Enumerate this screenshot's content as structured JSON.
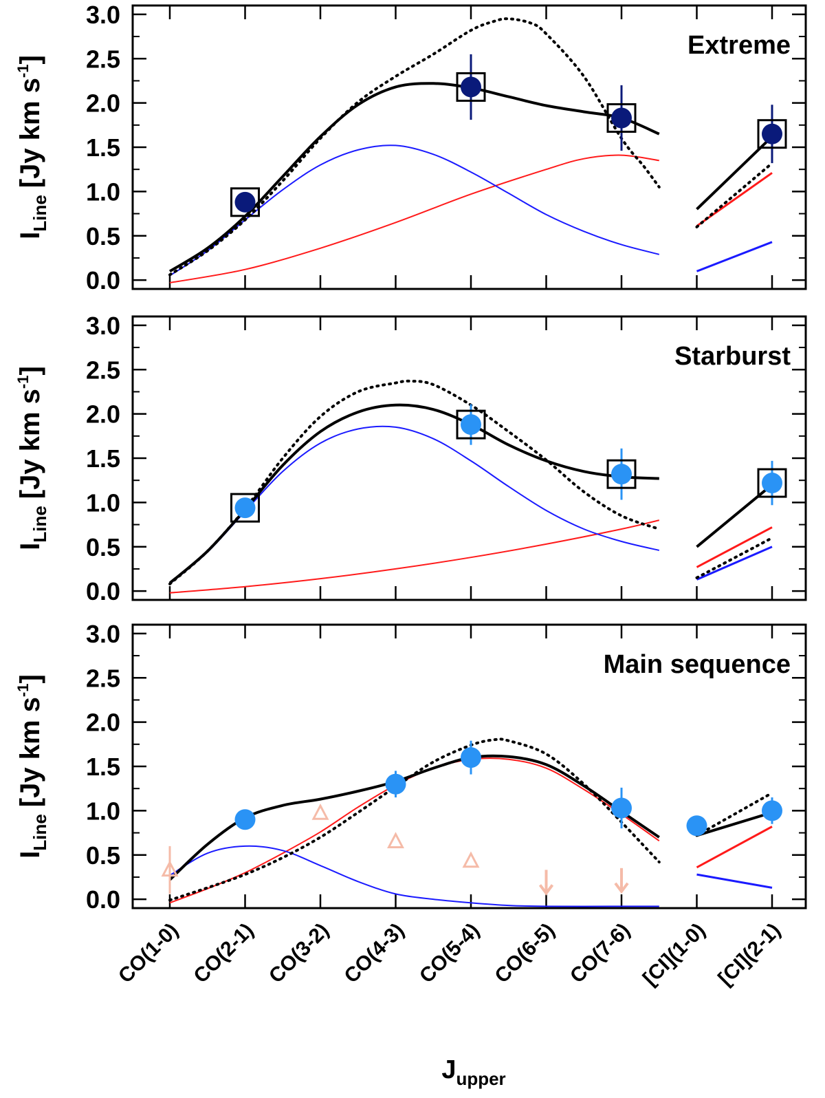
{
  "chart_data": {
    "type": "line",
    "x_axis": {
      "label_main": "J",
      "label_sub": "upper",
      "categories": [
        "CO(1-0)",
        "CO(2-1)",
        "CO(3-2)",
        "CO(4-3)",
        "CO(5-4)",
        "CO(6-5)",
        "CO(7-6)",
        "[CI](1-0)",
        "[CI](2-1)"
      ]
    },
    "y_axis": {
      "label_main": "I",
      "label_sub": "Line",
      "label_rest": "[Jy km s",
      "label_sup": "-1",
      "label_close": "]",
      "ylim": [
        -0.1,
        3.1
      ],
      "ticks": [
        "0.0",
        "0.5",
        "1.0",
        "1.5",
        "2.0",
        "2.5",
        "3.0"
      ]
    },
    "colors": {
      "total": "#000000",
      "cold_component": "#1a1aff",
      "warm_component": "#ff1a1a",
      "extreme_points": "#0a1a7a",
      "points": "#2a93f5",
      "faint_points": "#f5bba8"
    },
    "panels": [
      {
        "title": "Extreme",
        "point_color_key": "extreme_points",
        "curves": {
          "total_co": [
            [
              1,
              0.1
            ],
            [
              1.5,
              0.36
            ],
            [
              2,
              0.72
            ],
            [
              2.5,
              1.17
            ],
            [
              3,
              1.62
            ],
            [
              3.5,
              1.98
            ],
            [
              4,
              2.18
            ],
            [
              4.5,
              2.22
            ],
            [
              5,
              2.17
            ],
            [
              5.5,
              2.07
            ],
            [
              6,
              1.97
            ],
            [
              6.5,
              1.9
            ],
            [
              7,
              1.83
            ],
            [
              7.5,
              1.65
            ]
          ],
          "total_ci": [
            [
              8,
              0.8
            ],
            [
              9,
              1.62
            ]
          ],
          "dotted_co": [
            [
              1,
              0.06
            ],
            [
              1.5,
              0.33
            ],
            [
              2,
              0.68
            ],
            [
              2.5,
              1.12
            ],
            [
              3,
              1.6
            ],
            [
              3.5,
              2.01
            ],
            [
              4,
              2.3
            ],
            [
              4.5,
              2.55
            ],
            [
              5,
              2.82
            ],
            [
              5.3,
              2.92
            ],
            [
              5.5,
              2.95
            ],
            [
              5.8,
              2.9
            ],
            [
              6,
              2.78
            ],
            [
              6.5,
              2.3
            ],
            [
              7,
              1.6
            ],
            [
              7.3,
              1.28
            ],
            [
              7.5,
              1.05
            ]
          ],
          "dotted_ci": [
            [
              8,
              0.6
            ],
            [
              9,
              1.32
            ]
          ],
          "blue_co": [
            [
              1,
              0.05
            ],
            [
              1.5,
              0.33
            ],
            [
              2,
              0.68
            ],
            [
              2.5,
              1.02
            ],
            [
              3,
              1.3
            ],
            [
              3.5,
              1.47
            ],
            [
              4,
              1.52
            ],
            [
              4.5,
              1.42
            ],
            [
              5,
              1.22
            ],
            [
              5.5,
              0.98
            ],
            [
              6,
              0.74
            ],
            [
              6.5,
              0.55
            ],
            [
              7,
              0.4
            ],
            [
              7.5,
              0.29
            ]
          ],
          "blue_ci": [
            [
              8,
              0.1
            ],
            [
              9,
              0.43
            ]
          ],
          "red_co": [
            [
              1,
              -0.03
            ],
            [
              2,
              0.12
            ],
            [
              3,
              0.36
            ],
            [
              4,
              0.65
            ],
            [
              5,
              0.97
            ],
            [
              6,
              1.25
            ],
            [
              6.5,
              1.37
            ],
            [
              7,
              1.41
            ],
            [
              7.5,
              1.35
            ]
          ],
          "red_ci": [
            [
              8,
              0.61
            ],
            [
              9,
              1.21
            ]
          ]
        },
        "points": [
          {
            "x": 2,
            "y": 0.88,
            "err": 0,
            "boxed": true
          },
          {
            "x": 5,
            "y": 2.18,
            "err": 0.37,
            "boxed": true
          },
          {
            "x": 7,
            "y": 1.83,
            "err": 0.37,
            "boxed": true
          },
          {
            "x": 9,
            "y": 1.65,
            "err": 0.33,
            "boxed": true
          }
        ],
        "faint_triangles": [],
        "faint_arrows": [],
        "faint_errbars": []
      },
      {
        "title": "Starburst",
        "point_color_key": "points",
        "curves": {
          "total_co": [
            [
              1,
              0.09
            ],
            [
              1.5,
              0.45
            ],
            [
              2,
              0.92
            ],
            [
              2.5,
              1.42
            ],
            [
              3,
              1.8
            ],
            [
              3.5,
              2.02
            ],
            [
              4,
              2.1
            ],
            [
              4.5,
              2.05
            ],
            [
              5,
              1.88
            ],
            [
              5.5,
              1.65
            ],
            [
              6,
              1.47
            ],
            [
              6.5,
              1.35
            ],
            [
              7,
              1.29
            ],
            [
              7.5,
              1.27
            ]
          ],
          "total_ci": [
            [
              8,
              0.5
            ],
            [
              9,
              1.2
            ]
          ],
          "dotted_co": [
            [
              1,
              0.08
            ],
            [
              1.5,
              0.45
            ],
            [
              2,
              0.93
            ],
            [
              2.5,
              1.5
            ],
            [
              3,
              1.97
            ],
            [
              3.5,
              2.25
            ],
            [
              4,
              2.35
            ],
            [
              4.2,
              2.37
            ],
            [
              4.5,
              2.33
            ],
            [
              5,
              2.1
            ],
            [
              5.5,
              1.8
            ],
            [
              6,
              1.48
            ],
            [
              6.5,
              1.12
            ],
            [
              7,
              0.85
            ],
            [
              7.5,
              0.7
            ]
          ],
          "dotted_ci": [
            [
              8,
              0.15
            ],
            [
              9,
              0.6
            ]
          ],
          "blue_co": [
            [
              1,
              0.08
            ],
            [
              1.5,
              0.44
            ],
            [
              2,
              0.9
            ],
            [
              2.5,
              1.35
            ],
            [
              3,
              1.67
            ],
            [
              3.5,
              1.83
            ],
            [
              4,
              1.85
            ],
            [
              4.5,
              1.72
            ],
            [
              5,
              1.47
            ],
            [
              5.5,
              1.18
            ],
            [
              6,
              0.91
            ],
            [
              6.5,
              0.7
            ],
            [
              7,
              0.56
            ],
            [
              7.5,
              0.46
            ]
          ],
          "blue_ci": [
            [
              8,
              0.13
            ],
            [
              9,
              0.5
            ]
          ],
          "red_co": [
            [
              1,
              -0.02
            ],
            [
              2,
              0.05
            ],
            [
              3,
              0.14
            ],
            [
              4,
              0.25
            ],
            [
              5,
              0.38
            ],
            [
              6,
              0.53
            ],
            [
              7,
              0.7
            ],
            [
              7.5,
              0.8
            ]
          ],
          "red_ci": [
            [
              8,
              0.27
            ],
            [
              9,
              0.72
            ]
          ]
        },
        "points": [
          {
            "x": 2,
            "y": 0.94,
            "err": 0,
            "boxed": true
          },
          {
            "x": 5,
            "y": 1.88,
            "err": 0.23,
            "boxed": true
          },
          {
            "x": 7,
            "y": 1.32,
            "err": 0.29,
            "boxed": true
          },
          {
            "x": 9,
            "y": 1.22,
            "err": 0.25,
            "boxed": true
          }
        ],
        "faint_triangles": [],
        "faint_arrows": [],
        "faint_errbars": []
      },
      {
        "title": "Main sequence",
        "point_color_key": "points",
        "curves": {
          "total_co": [
            [
              1,
              0.22
            ],
            [
              1.5,
              0.62
            ],
            [
              2,
              0.92
            ],
            [
              2.5,
              1.06
            ],
            [
              3,
              1.13
            ],
            [
              3.5,
              1.22
            ],
            [
              4,
              1.33
            ],
            [
              4.5,
              1.48
            ],
            [
              5,
              1.6
            ],
            [
              5.5,
              1.61
            ],
            [
              6,
              1.52
            ],
            [
              6.5,
              1.28
            ],
            [
              7,
              0.99
            ],
            [
              7.5,
              0.7
            ]
          ],
          "total_ci": [
            [
              8,
              0.72
            ],
            [
              9,
              0.98
            ]
          ],
          "dotted_co": [
            [
              1,
              -0.01
            ],
            [
              1.5,
              0.13
            ],
            [
              2,
              0.28
            ],
            [
              2.5,
              0.47
            ],
            [
              3,
              0.7
            ],
            [
              3.5,
              0.98
            ],
            [
              4,
              1.27
            ],
            [
              4.5,
              1.55
            ],
            [
              5,
              1.74
            ],
            [
              5.3,
              1.8
            ],
            [
              5.5,
              1.79
            ],
            [
              6,
              1.64
            ],
            [
              6.5,
              1.3
            ],
            [
              7,
              0.87
            ],
            [
              7.5,
              0.42
            ]
          ],
          "dotted_ci": [
            [
              8,
              0.72
            ],
            [
              9,
              1.2
            ]
          ],
          "blue_co": [
            [
              1,
              0.27
            ],
            [
              1.5,
              0.52
            ],
            [
              2,
              0.6
            ],
            [
              2.5,
              0.55
            ],
            [
              3,
              0.38
            ],
            [
              3.5,
              0.2
            ],
            [
              4,
              0.06
            ],
            [
              4.5,
              0
            ],
            [
              5,
              -0.04
            ],
            [
              5.5,
              -0.07
            ],
            [
              6,
              -0.08
            ],
            [
              7,
              -0.08
            ],
            [
              7.5,
              -0.08
            ]
          ],
          "blue_ci": [
            [
              8,
              0.28
            ],
            [
              9,
              0.13
            ]
          ],
          "red_co": [
            [
              1,
              -0.04
            ],
            [
              1.5,
              0.12
            ],
            [
              2,
              0.3
            ],
            [
              2.5,
              0.52
            ],
            [
              3,
              0.76
            ],
            [
              3.5,
              1.04
            ],
            [
              4,
              1.29
            ],
            [
              4.5,
              1.48
            ],
            [
              5,
              1.58
            ],
            [
              5.5,
              1.58
            ],
            [
              6,
              1.48
            ],
            [
              6.5,
              1.24
            ],
            [
              7,
              0.96
            ],
            [
              7.5,
              0.66
            ]
          ],
          "red_ci": [
            [
              8,
              0.36
            ],
            [
              9,
              0.82
            ]
          ]
        },
        "points": [
          {
            "x": 2,
            "y": 0.9,
            "err": 0,
            "boxed": false
          },
          {
            "x": 4,
            "y": 1.3,
            "err": 0.15,
            "boxed": false
          },
          {
            "x": 5,
            "y": 1.6,
            "err": 0.19,
            "boxed": false
          },
          {
            "x": 7,
            "y": 1.03,
            "err": 0.23,
            "boxed": false
          },
          {
            "x": 8,
            "y": 0.83,
            "err": 0,
            "boxed": false
          },
          {
            "x": 9,
            "y": 1.0,
            "err": 0.15,
            "boxed": false
          }
        ],
        "faint_triangles": [
          {
            "x": 1,
            "y": 0.33
          },
          {
            "x": 3,
            "y": 0.97
          },
          {
            "x": 4,
            "y": 0.65
          },
          {
            "x": 5,
            "y": 0.43
          }
        ],
        "faint_arrows": [
          {
            "x": 6,
            "y": 0.2
          },
          {
            "x": 7,
            "y": 0.22
          }
        ],
        "faint_errbars": [
          {
            "x": 1,
            "y": 0.33,
            "err": 0.27
          }
        ]
      }
    ]
  }
}
